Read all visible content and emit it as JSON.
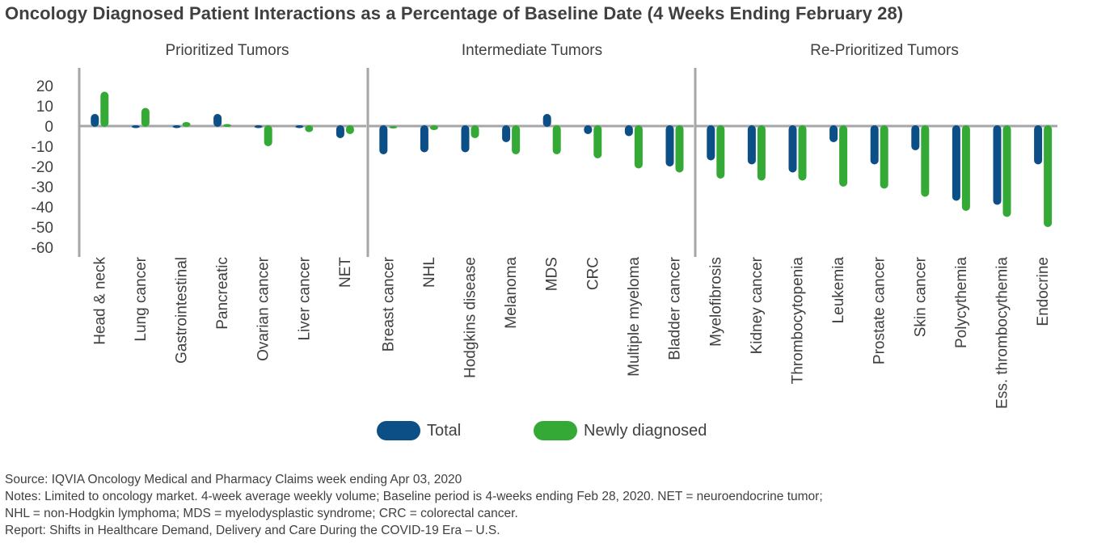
{
  "title": "Oncology Diagnosed Patient Interactions as a Percentage of Baseline Date (4 Weeks Ending February 28)",
  "colors": {
    "total": "#0b4f86",
    "new": "#35a936",
    "axis": "#a6a6a8",
    "text": "#404040"
  },
  "legend": {
    "total": "Total",
    "new": "Newly diagnosed"
  },
  "notes": {
    "source": "Source: IQVIA Oncology Medical and Pharmacy Claims week ending Apr 03, 2020",
    "notes_line1": "Notes: Limited to oncology market. 4-week average weekly volume; Baseline period is 4-weeks ending Feb 28, 2020. NET = neuroendocrine tumor;",
    "notes_line2": "NHL = non-Hodgkin lymphoma; MDS = myelodysplastic syndrome; CRC = colorectal cancer.",
    "report": "Report: Shifts in Healthcare Demand, Delivery and Care During the COVID-19 Era – U.S."
  },
  "chart_data": {
    "type": "bar",
    "y_ticks": [
      "20",
      "10",
      "0",
      "-10",
      "-20",
      "-30",
      "-40",
      "-50",
      "-60"
    ],
    "ylim": [
      -60,
      20
    ],
    "legend_position": "bottom",
    "grid": false,
    "groups": [
      {
        "name": "Prioritized Tumors",
        "categories": [
          "Head & neck",
          "Lung cancer",
          "Gastrointestinal",
          "Pancreatic",
          "Ovarian cancer",
          "Liver cancer",
          "NET"
        ],
        "series": [
          {
            "name": "Total",
            "values": [
              6,
              -1,
              -1,
              6,
              -1,
              -1,
              -6
            ]
          },
          {
            "name": "Newly diagnosed",
            "values": [
              17,
              9,
              2,
              1,
              -10,
              -3,
              -4
            ]
          }
        ]
      },
      {
        "name": "Intermediate Tumors",
        "categories": [
          "Breast cancer",
          "NHL",
          "Hodgkins disease",
          "Melanoma",
          "MDS",
          "CRC",
          "Multiple myeloma",
          "Bladder cancer"
        ],
        "series": [
          {
            "name": "Total",
            "values": [
              -14,
              -13,
              -13,
              -8,
              6,
              -4,
              -5,
              -20
            ]
          },
          {
            "name": "Newly diagnosed",
            "values": [
              0,
              -2,
              -6,
              -14,
              -14,
              -16,
              -21,
              -23
            ]
          }
        ]
      },
      {
        "name": "Re-Prioritized Tumors",
        "categories": [
          "Myelofibrosis",
          "Kidney cancer",
          "Thrombocytopenia",
          "Leukemia",
          "Prostate cancer",
          "Skin cancer",
          "Polycythemia",
          "Ess. thrombocythemia",
          "Endocrine"
        ],
        "series": [
          {
            "name": "Total",
            "values": [
              -17,
              -19,
              -23,
              -8,
              -19,
              -12,
              -37,
              -39,
              -19
            ]
          },
          {
            "name": "Newly diagnosed",
            "values": [
              -26,
              -27,
              -27,
              -30,
              -31,
              -35,
              -42,
              -45,
              -50
            ]
          }
        ]
      }
    ]
  }
}
